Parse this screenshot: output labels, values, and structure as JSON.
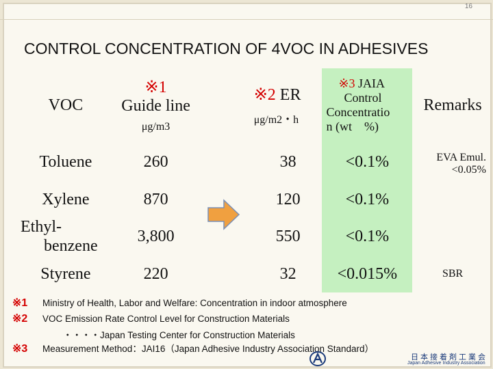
{
  "page_number": "16",
  "title": "CONTROL CONCENTRATION OF 4VOC IN ADHESIVES",
  "header": {
    "voc": "VOC",
    "guide_mark": "※1",
    "guide_label": "Guide line",
    "guide_unit": "μg/m3",
    "er_mark": "※2",
    "er_label": " ER",
    "er_unit": "μg/m2・h",
    "jaia_mark": "※3",
    "jaia_l1": " JAIA",
    "jaia_l2": "Control",
    "jaia_l3": "Concentratio",
    "jaia_l4": "n (wt　%)",
    "remarks": "Remarks"
  },
  "rows": [
    {
      "voc": "Toluene",
      "guide": "260",
      "er": "38",
      "jaia": "<0.1%",
      "remarks_l1": "EVA Emul.",
      "remarks_l2": "<0.05%"
    },
    {
      "voc": "Xylene",
      "guide": "870",
      "er": "120",
      "jaia": "<0.1%",
      "remarks": ""
    },
    {
      "voc_l1": "Ethyl-",
      "voc_l2": "benzene",
      "guide": "3,800",
      "er": "550",
      "jaia": "<0.1%",
      "remarks": ""
    },
    {
      "voc": "Styrene",
      "guide": "220",
      "er": "32",
      "jaia": "<0.015%",
      "remarks": "SBR"
    }
  ],
  "notes": [
    {
      "mark": "※1",
      "text": "Ministry of Health, Labor and Welfare: Concentration in indoor atmosphere"
    },
    {
      "mark": "※2",
      "text": "VOC Emission Rate Control Level for Construction Materials"
    },
    {
      "mark": "",
      "text": "・・・・Japan Testing Center for Construction Materials"
    },
    {
      "mark": "※3",
      "text": "Measurement Method：JAI16（Japan Adhesive Industry Association Standard）"
    }
  ],
  "logo": {
    "text": "日本接着剤工業会",
    "sub": "Japan Adhesive Industry Association"
  },
  "colors": {
    "accent_red": "#d40000",
    "highlight_green": "#c5f0c0",
    "arrow_orange": "#f0a040"
  }
}
